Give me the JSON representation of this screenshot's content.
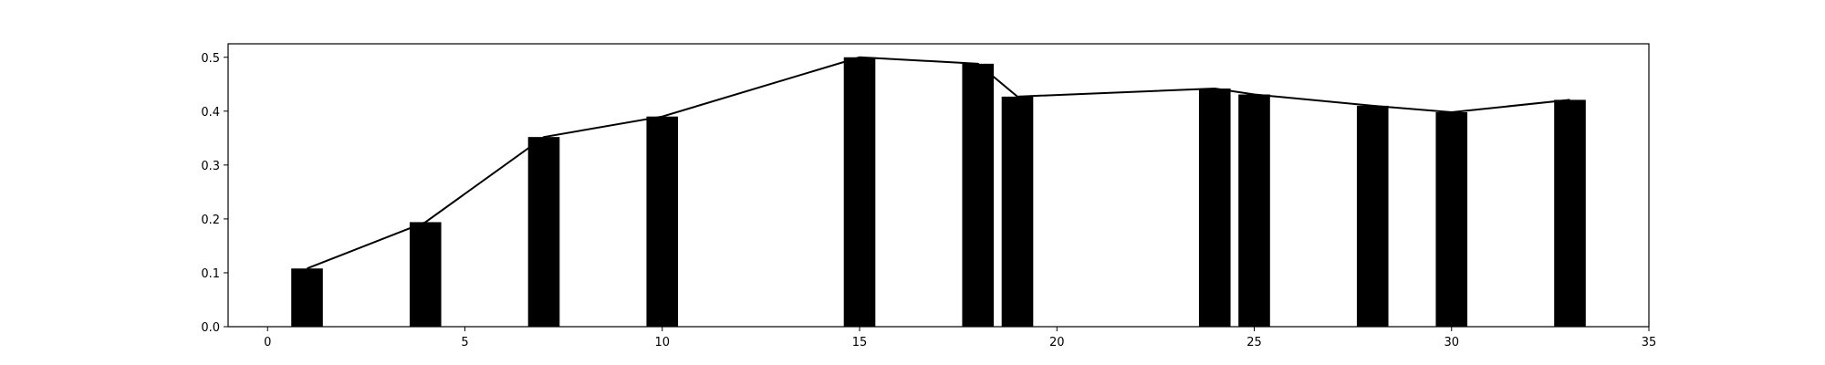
{
  "chart_data": {
    "type": "bar",
    "title": "",
    "xlabel": "",
    "ylabel": "",
    "xlim": [
      -1,
      35
    ],
    "ylim": [
      0,
      0.525
    ],
    "xticks": [
      0,
      5,
      10,
      15,
      20,
      25,
      30,
      35
    ],
    "yticks": [
      0.0,
      0.1,
      0.2,
      0.3,
      0.4,
      0.5
    ],
    "xtick_labels": [
      "0",
      "5",
      "10",
      "15",
      "20",
      "25",
      "30",
      "35"
    ],
    "ytick_labels": [
      "0.0",
      "0.1",
      "0.2",
      "0.3",
      "0.4",
      "0.5"
    ],
    "grid": false,
    "bar_width": 0.8,
    "x": [
      1,
      4,
      7,
      10,
      15,
      18,
      19,
      24,
      25,
      28,
      30,
      33
    ],
    "values": [
      0.108,
      0.194,
      0.352,
      0.39,
      0.5,
      0.488,
      0.427,
      0.442,
      0.431,
      0.41,
      0.398,
      0.421
    ],
    "line": {
      "x": [
        1,
        4,
        7,
        10,
        15,
        18,
        19,
        24,
        25,
        28,
        30,
        33
      ],
      "values": [
        0.108,
        0.194,
        0.352,
        0.39,
        0.5,
        0.488,
        0.427,
        0.442,
        0.431,
        0.41,
        0.398,
        0.421
      ]
    },
    "colors": {
      "bar": "#000000",
      "line": "#000000",
      "axes": "#000000"
    }
  }
}
